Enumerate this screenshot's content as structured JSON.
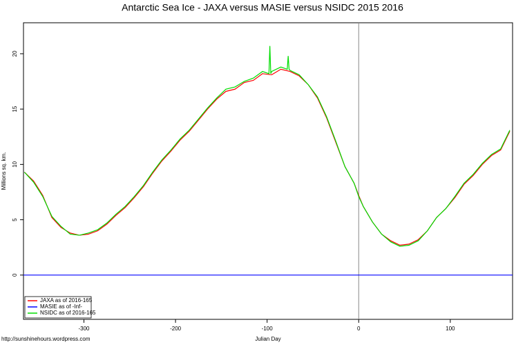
{
  "chart_data": {
    "type": "line",
    "title": "Antarctic Sea Ice - JAXA versus MASIE versus NSIDC 2015 2016",
    "xlabel": "Julian Day",
    "ylabel": "Millions sq. km.",
    "source": "http://sunshinehours.wordpress.com",
    "xlim": [
      -366,
      168
    ],
    "ylim": [
      -4,
      22.8
    ],
    "xticks": [
      -300,
      -200,
      -100,
      0,
      100
    ],
    "yticks": [
      0,
      5,
      10,
      15,
      20
    ],
    "vline": 0,
    "legend": "bottomleft",
    "series": [
      {
        "name": "JAXA as of 2016-165",
        "color": "#ff0000",
        "x": [
          -365,
          -355,
          -345,
          -335,
          -325,
          -315,
          -305,
          -295,
          -285,
          -275,
          -265,
          -255,
          -245,
          -235,
          -225,
          -215,
          -205,
          -195,
          -185,
          -175,
          -165,
          -155,
          -145,
          -135,
          -125,
          -115,
          -105,
          -95,
          -85,
          -75,
          -65,
          -55,
          -45,
          -35,
          -25,
          -15,
          -5,
          0,
          5,
          15,
          25,
          35,
          45,
          55,
          65,
          75,
          85,
          95,
          105,
          115,
          125,
          135,
          145,
          155,
          165
        ],
        "values": [
          9.3,
          8.5,
          7.2,
          5.2,
          4.3,
          3.8,
          3.6,
          3.7,
          4.0,
          4.6,
          5.4,
          6.1,
          7.0,
          8.0,
          9.2,
          10.3,
          11.2,
          12.2,
          13.0,
          14.0,
          15.0,
          15.9,
          16.6,
          16.8,
          17.4,
          17.6,
          18.2,
          18.1,
          18.6,
          18.4,
          18.0,
          17.2,
          16.0,
          14.2,
          12.0,
          9.8,
          8.3,
          7.2,
          6.2,
          4.8,
          3.7,
          3.1,
          2.7,
          2.8,
          3.2,
          4.0,
          5.2,
          6.0,
          7.0,
          8.2,
          9.0,
          10.0,
          10.8,
          11.3,
          13.0
        ]
      },
      {
        "name": "MASIE as of -Inf-",
        "color": "#0000ff",
        "x": [
          -366,
          168
        ],
        "values": [
          0,
          0
        ]
      },
      {
        "name": "NSIDC as of 2016-165",
        "color": "#00dd00",
        "x": [
          -365,
          -355,
          -345,
          -335,
          -325,
          -315,
          -305,
          -295,
          -285,
          -275,
          -265,
          -255,
          -245,
          -235,
          -225,
          -215,
          -205,
          -195,
          -185,
          -175,
          -165,
          -155,
          -145,
          -135,
          -125,
          -115,
          -105,
          -98,
          -97,
          -96,
          -95,
          -85,
          -78,
          -77,
          -76,
          -75,
          -65,
          -55,
          -45,
          -35,
          -25,
          -15,
          -5,
          0,
          5,
          15,
          25,
          35,
          45,
          55,
          65,
          75,
          85,
          95,
          105,
          115,
          125,
          135,
          145,
          155,
          165
        ],
        "values": [
          9.3,
          8.4,
          7.1,
          5.3,
          4.4,
          3.7,
          3.6,
          3.8,
          4.1,
          4.7,
          5.5,
          6.2,
          7.1,
          8.1,
          9.3,
          10.4,
          11.3,
          12.3,
          13.1,
          14.1,
          15.1,
          16.0,
          16.8,
          17.0,
          17.5,
          17.8,
          18.4,
          18.2,
          20.7,
          18.2,
          18.4,
          18.8,
          18.6,
          19.8,
          18.6,
          18.5,
          18.1,
          17.2,
          16.1,
          14.3,
          12.1,
          9.8,
          8.3,
          7.1,
          6.2,
          4.8,
          3.7,
          3.0,
          2.6,
          2.7,
          3.1,
          4.0,
          5.2,
          6.0,
          7.1,
          8.3,
          9.1,
          10.1,
          10.9,
          11.4,
          13.1
        ]
      }
    ]
  }
}
